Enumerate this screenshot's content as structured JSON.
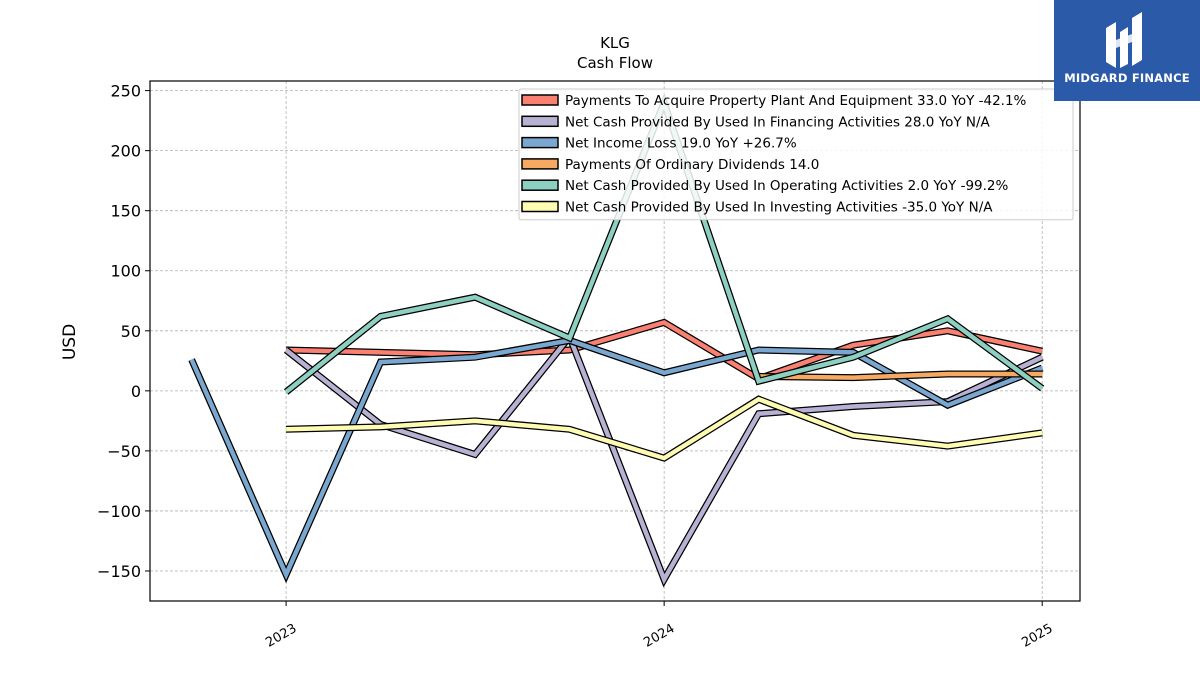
{
  "brand": {
    "name": "MIDGARD FINANCE",
    "bg_color": "#2b5aa8",
    "icon": "midgard-logo-icon"
  },
  "chart_data": {
    "type": "line",
    "title": "KLG",
    "subtitle": "Cash Flow",
    "ylabel": "USD",
    "xlabel": "",
    "ylim": [
      -175,
      258
    ],
    "xlim": [
      2022.64,
      2025.1
    ],
    "yticks": [
      -150,
      -100,
      -50,
      0,
      50,
      100,
      150,
      200,
      250
    ],
    "ytick_labels": [
      "−150",
      "−100",
      "−50",
      "0",
      "50",
      "100",
      "150",
      "200",
      "250"
    ],
    "xticks": [
      2023,
      2024,
      2025
    ],
    "xtick_labels": [
      "2023",
      "2024",
      "2025"
    ],
    "grid": true,
    "legend_position": "top-right",
    "series": [
      {
        "name": "Payments To Acquire Property Plant And Equipment",
        "legend": "Payments To Acquire Property Plant And Equipment  33.0 YoY -42.1%",
        "color": "#fa8072",
        "x": [
          2023.0,
          2023.5,
          2023.75,
          2024.0,
          2024.25,
          2024.5,
          2024.75,
          2025.0
        ],
        "y": [
          34,
          30,
          34,
          57,
          10,
          38,
          50,
          33
        ]
      },
      {
        "name": "Net Cash Provided By Used In Financing Activities",
        "legend": "Net Cash Provided By Used In Financing Activities  28.0 YoY N/A",
        "color": "#b7b2d4",
        "x": [
          2023.0,
          2023.25,
          2023.5,
          2023.75,
          2024.0,
          2024.25,
          2024.5,
          2024.75,
          2025.0
        ],
        "y": [
          34,
          -28,
          -53,
          45,
          -157,
          -19,
          -13,
          -9,
          28
        ]
      },
      {
        "name": "Net Income Loss",
        "legend": "Net Income Loss  19.0 YoY +26.7%",
        "color": "#7aa7cf",
        "x": [
          2022.75,
          2023.0,
          2023.25,
          2023.5,
          2023.75,
          2024.0,
          2024.25,
          2024.5,
          2024.75,
          2025.0
        ],
        "y": [
          26,
          -153,
          24,
          28,
          42,
          15,
          34,
          32,
          -12,
          19
        ]
      },
      {
        "name": "Payments Of Ordinary Dividends",
        "legend": "Payments Of Ordinary Dividends  14.0",
        "color": "#f6a962",
        "x": [
          2024.25,
          2024.5,
          2024.75,
          2025.0
        ],
        "y": [
          12,
          11,
          14,
          14
        ]
      },
      {
        "name": "Net Cash Provided By Used In Operating Activities",
        "legend": "Net Cash Provided By Used In Operating Activities  2.0 YoY -99.2%",
        "color": "#8dcfc0",
        "x": [
          2023.0,
          2023.25,
          2023.5,
          2023.75,
          2024.0,
          2024.25,
          2024.5,
          2024.75,
          2025.0
        ],
        "y": [
          -1,
          62,
          78,
          44,
          240,
          8,
          28,
          60,
          2
        ]
      },
      {
        "name": "Net Cash Provided By Used In Investing Activities",
        "legend": "Net Cash Provided By Used In Investing Activities  -35.0 YoY N/A",
        "color": "#fdfcb2",
        "x": [
          2023.0,
          2023.25,
          2023.5,
          2023.75,
          2024.0,
          2024.25,
          2024.5,
          2024.75,
          2025.0
        ],
        "y": [
          -32,
          -30,
          -25,
          -32,
          -56,
          -7,
          -37,
          -46,
          -35
        ]
      }
    ]
  }
}
